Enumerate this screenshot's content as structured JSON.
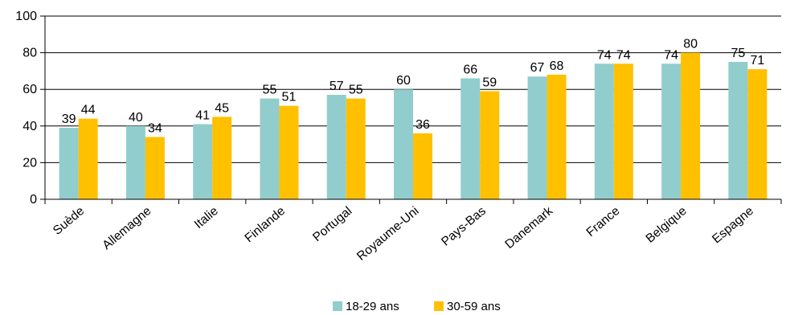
{
  "chart_data": {
    "type": "bar",
    "categories": [
      "Suède",
      "Allemagne",
      "Italie",
      "Finlande",
      "Portugal",
      "Royaume-Uni",
      "Pays-Bas",
      "Danemark",
      "France",
      "Belgique",
      "Espagne"
    ],
    "series": [
      {
        "name": "18-29 ans",
        "color": "#92CDCD",
        "values": [
          39,
          40,
          41,
          55,
          57,
          60,
          66,
          67,
          74,
          74,
          75
        ]
      },
      {
        "name": "30-59 ans",
        "color": "#FFC000",
        "values": [
          44,
          34,
          45,
          51,
          55,
          36,
          59,
          68,
          74,
          80,
          71
        ]
      }
    ],
    "yticks": [
      "0",
      "20",
      "40",
      "60",
      "80",
      "100"
    ],
    "ylim": [
      0,
      100
    ],
    "grid": true,
    "legend_position": "bottom",
    "title": "",
    "xlabel": "",
    "ylabel": ""
  }
}
